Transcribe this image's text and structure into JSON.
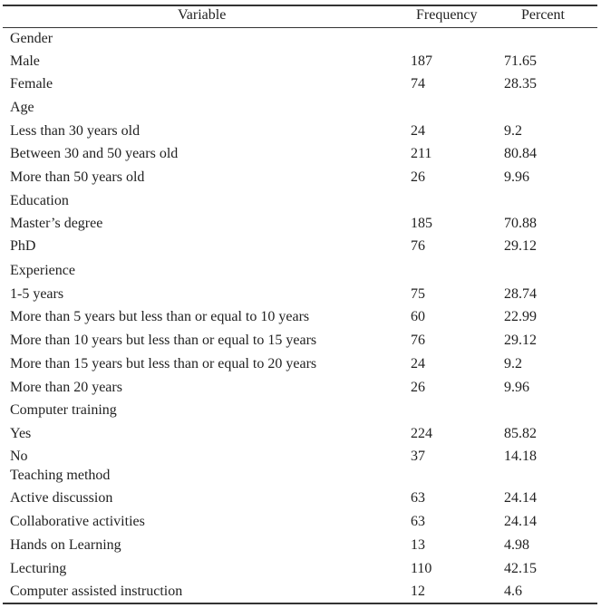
{
  "table": {
    "columns": [
      "Variable",
      "Frequency",
      "Percent"
    ],
    "rows": [
      {
        "type": "group",
        "label": "Gender",
        "frequency": "",
        "percent": ""
      },
      {
        "type": "item",
        "label": "Male",
        "frequency": "187",
        "percent": "71.65"
      },
      {
        "type": "item",
        "label": "Female",
        "frequency": "74",
        "percent": "28.35"
      },
      {
        "type": "group",
        "label": "Age",
        "frequency": "",
        "percent": ""
      },
      {
        "type": "item",
        "label": "Less than 30 years old",
        "frequency": "24",
        "percent": "9.2"
      },
      {
        "type": "item",
        "label": "Between 30 and 50 years old",
        "frequency": "211",
        "percent": "80.84"
      },
      {
        "type": "item",
        "label": "More than 50 years old",
        "frequency": "26",
        "percent": "9.96"
      },
      {
        "type": "group",
        "label": "Education",
        "frequency": "",
        "percent": ""
      },
      {
        "type": "item",
        "label": "Master’s degree",
        "frequency": "185",
        "percent": "70.88"
      },
      {
        "type": "item",
        "label": "PhD",
        "frequency": "76",
        "percent": "29.12"
      },
      {
        "type": "group",
        "label": "Experience",
        "frequency": "",
        "percent": ""
      },
      {
        "type": "item",
        "label": "1-5 years",
        "frequency": "75",
        "percent": "28.74"
      },
      {
        "type": "item",
        "label": "More than 5 years but less than or equal to 10 years",
        "frequency": "60",
        "percent": "22.99"
      },
      {
        "type": "item",
        "label": "More than 10 years but less than or equal to 15 years",
        "frequency": "76",
        "percent": "29.12"
      },
      {
        "type": "item",
        "label": "More than 15 years but less than or equal to 20 years",
        "frequency": "24",
        "percent": "9.2"
      },
      {
        "type": "item",
        "label": "More than 20 years",
        "frequency": "26",
        "percent": "9.96"
      },
      {
        "type": "group",
        "label": "Computer training",
        "frequency": "",
        "percent": ""
      },
      {
        "type": "item",
        "label": "Yes",
        "frequency": "224",
        "percent": "85.82"
      },
      {
        "type": "item",
        "label": "No",
        "frequency": "37",
        "percent": "14.18"
      },
      {
        "type": "group",
        "label": "Teaching method",
        "frequency": "",
        "percent": ""
      },
      {
        "type": "item",
        "label": "Active discussion",
        "frequency": "63",
        "percent": "24.14"
      },
      {
        "type": "item",
        "label": "Collaborative activities",
        "frequency": "63",
        "percent": "24.14"
      },
      {
        "type": "item",
        "label": "Hands on Learning",
        "frequency": "13",
        "percent": "4.98"
      },
      {
        "type": "item",
        "label": "Lecturing",
        "frequency": "110",
        "percent": "42.15"
      },
      {
        "type": "item",
        "label": "Computer assisted instruction",
        "frequency": "12",
        "percent": "4.6"
      }
    ]
  }
}
